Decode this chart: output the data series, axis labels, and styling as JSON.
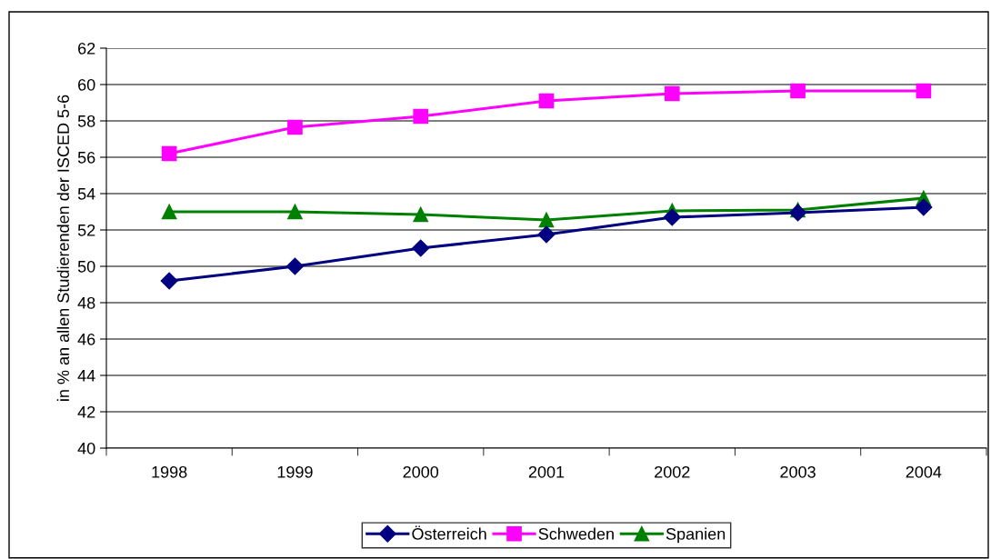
{
  "chart_data": {
    "type": "line",
    "ylabel": "in % an allen Studierenden der ISCED 5-6",
    "categories": [
      "1998",
      "1999",
      "2000",
      "2001",
      "2002",
      "2003",
      "2004"
    ],
    "series": [
      {
        "name": "Österreich",
        "color": "#000080",
        "marker": "diamond",
        "values": [
          49.2,
          50.0,
          51.0,
          51.75,
          52.7,
          52.95,
          53.25
        ]
      },
      {
        "name": "Schweden",
        "color": "#ff00ff",
        "marker": "square",
        "values": [
          56.2,
          57.65,
          58.25,
          59.1,
          59.5,
          59.65,
          59.65
        ]
      },
      {
        "name": "Spanien",
        "color": "#008000",
        "marker": "triangle",
        "values": [
          53.0,
          53.0,
          52.85,
          52.55,
          53.05,
          53.1,
          53.75
        ]
      }
    ],
    "ylim": [
      40,
      62
    ],
    "yticks": [
      40,
      42,
      44,
      46,
      48,
      50,
      52,
      54,
      56,
      58,
      60,
      62
    ],
    "grid": "y",
    "legend": "bottom",
    "line_style": "solid"
  }
}
